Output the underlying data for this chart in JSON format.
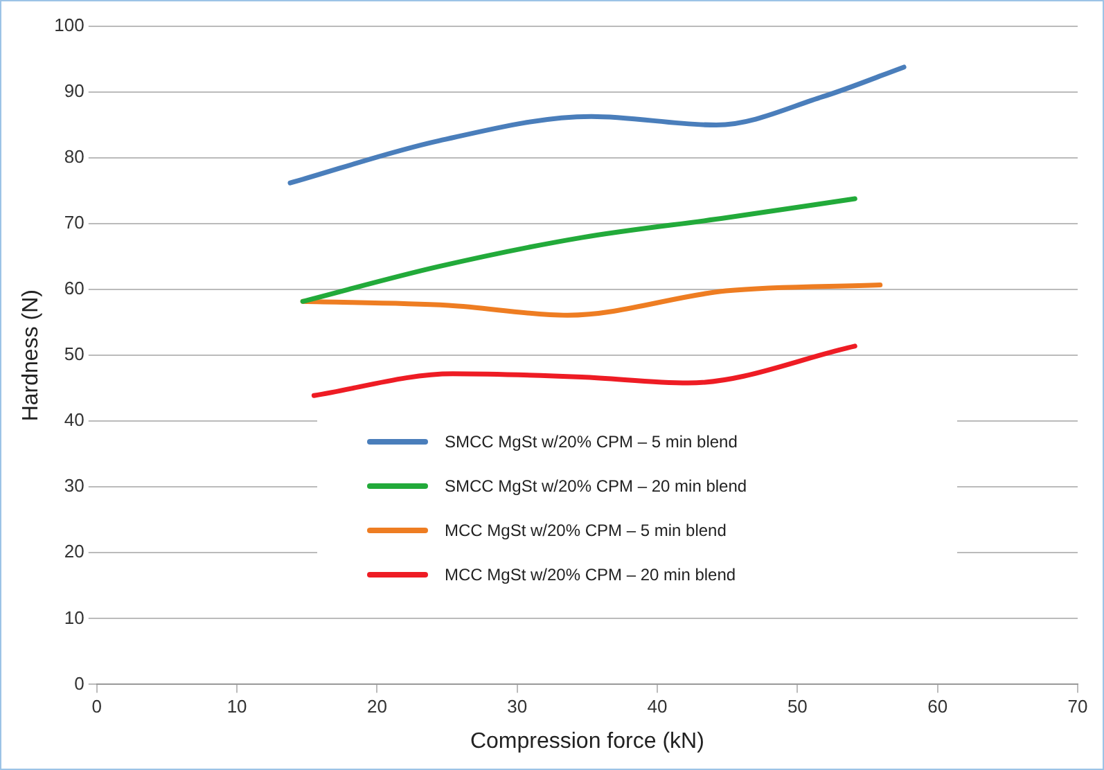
{
  "chart_data": {
    "type": "line",
    "xlabel": "Compression force (kN)",
    "ylabel": "Hardness (N)",
    "xlim": [
      0,
      70
    ],
    "xticks": [
      0,
      10,
      20,
      30,
      40,
      50,
      60,
      70
    ],
    "ylim": [
      0,
      100
    ],
    "yticks": [
      0,
      10,
      20,
      30,
      40,
      50,
      60,
      70,
      80,
      90,
      100
    ],
    "grid": "y",
    "legend": "center",
    "marker": "none",
    "line_style": "solid",
    "series": [
      {
        "name": "SMCC MgSt w/20% CPM – 5 min blend",
        "color": "#4a7ebb",
        "x": [
          13.8,
          24.4,
          35.3,
          44.2,
          51.8,
          57.6
        ],
        "values": [
          76.2,
          82.6,
          86.3,
          85.0,
          89.3,
          93.8
        ]
      },
      {
        "name": "SMCC MgSt w/20% CPM – 20 min blend",
        "color": "#22aa3a",
        "x": [
          14.7,
          24.4,
          34.6,
          44.9,
          54.1
        ],
        "values": [
          58.2,
          63.5,
          67.9,
          70.9,
          73.8
        ]
      },
      {
        "name": "MCC MgSt w/20% CPM – 5 min blend",
        "color": "#ee7d22",
        "x": [
          14.7,
          25.1,
          33.6,
          44.9,
          55.9
        ],
        "values": [
          58.2,
          57.6,
          56.1,
          59.8,
          60.7
        ]
      },
      {
        "name": "MCC MgSt w/20% CPM – 20 min blend",
        "color": "#ee1c24",
        "x": [
          15.5,
          25.4,
          34.6,
          42.2,
          54.1
        ],
        "values": [
          43.9,
          47.2,
          46.7,
          45.8,
          51.4
        ]
      }
    ]
  }
}
